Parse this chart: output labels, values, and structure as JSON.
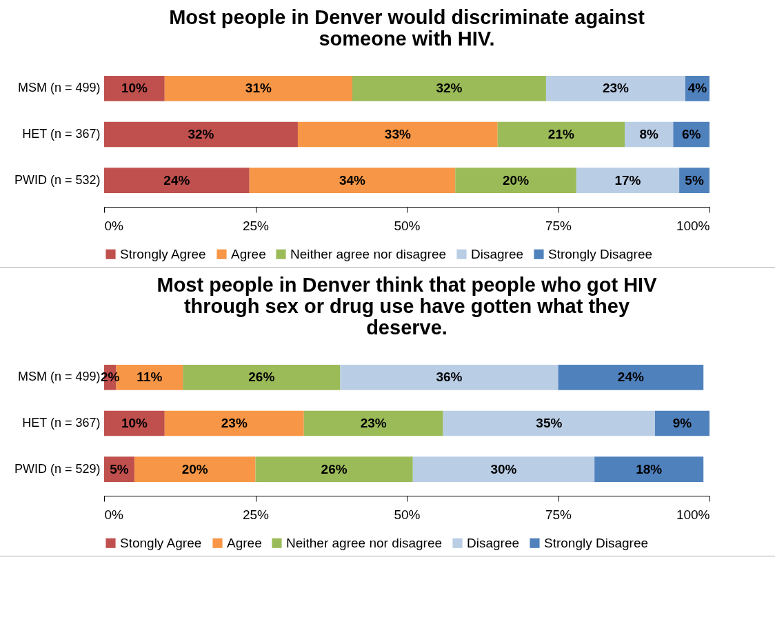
{
  "chart_data": [
    {
      "type": "bar",
      "orientation": "horizontal",
      "stacked": true,
      "title": "Most people in Denver would discriminate against someone with HIV.",
      "categories": [
        "MSM (n = 499)",
        "HET (n = 367)",
        "PWID (n = 532)"
      ],
      "series": [
        {
          "name": "Strongly Agree",
          "color": "#c0504d",
          "values": [
            10,
            32,
            24
          ],
          "value_labels": [
            "10%",
            "32%",
            "24%"
          ]
        },
        {
          "name": "Agree",
          "color": "#f79646",
          "values": [
            31,
            33,
            34
          ],
          "value_labels": [
            "31%",
            "33%",
            "34%"
          ]
        },
        {
          "name": "Neither agree nor disagree",
          "color": "#9bbb59",
          "values": [
            32,
            21,
            20
          ],
          "value_labels": [
            "32%",
            "21%",
            "20%"
          ]
        },
        {
          "name": "Disagree",
          "color": "#b9cde5",
          "values": [
            23,
            8,
            17
          ],
          "value_labels": [
            "23%",
            "8%",
            "17%"
          ]
        },
        {
          "name": "Strongly Disagree",
          "color": "#4f81bd",
          "values": [
            4,
            6,
            5
          ],
          "value_labels": [
            "4%",
            "6%",
            "5%"
          ]
        }
      ],
      "xlim": [
        0,
        100
      ],
      "xticks": [
        {
          "value": 0,
          "label": "0%"
        },
        {
          "value": 25,
          "label": "25%"
        },
        {
          "value": 50,
          "label": "50%"
        },
        {
          "value": 75,
          "label": "75%"
        },
        {
          "value": 100,
          "label": "100%"
        }
      ],
      "legend": "bottom",
      "grid": false
    },
    {
      "type": "bar",
      "orientation": "horizontal",
      "stacked": true,
      "title": "Most people in Denver think that people who got HIV through sex or drug use have gotten what they deserve.",
      "categories": [
        "MSM (n = 499)",
        "HET (n = 367)",
        "PWID (n = 529)"
      ],
      "series": [
        {
          "name": "Stongly Agree",
          "color": "#c0504d",
          "values": [
            2,
            10,
            5
          ],
          "value_labels": [
            "2%",
            "10%",
            "5%"
          ]
        },
        {
          "name": "Agree",
          "color": "#f79646",
          "values": [
            11,
            23,
            20
          ],
          "value_labels": [
            "11%",
            "23%",
            "20%"
          ]
        },
        {
          "name": "Neither agree nor disagree",
          "color": "#9bbb59",
          "values": [
            26,
            23,
            26
          ],
          "value_labels": [
            "26%",
            "23%",
            "26%"
          ]
        },
        {
          "name": "Disagree",
          "color": "#b9cde5",
          "values": [
            36,
            35,
            30
          ],
          "value_labels": [
            "36%",
            "35%",
            "30%"
          ]
        },
        {
          "name": "Strongly Disagree",
          "color": "#4f81bd",
          "values": [
            24,
            9,
            18
          ],
          "value_labels": [
            "24%",
            "9%",
            "18%"
          ]
        }
      ],
      "xlim": [
        0,
        100
      ],
      "xticks": [
        {
          "value": 0,
          "label": "0%"
        },
        {
          "value": 25,
          "label": "25%"
        },
        {
          "value": 50,
          "label": "50%"
        },
        {
          "value": 75,
          "label": "75%"
        },
        {
          "value": 100,
          "label": "100%"
        }
      ],
      "legend": "bottom",
      "grid": false
    }
  ]
}
